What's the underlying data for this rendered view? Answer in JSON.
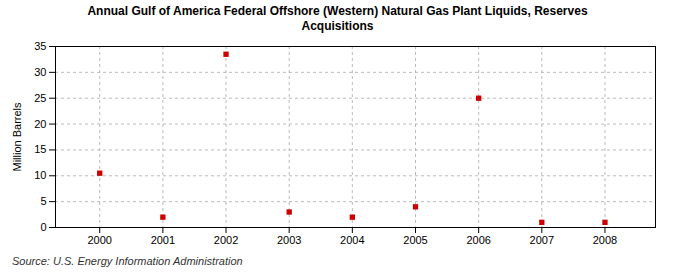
{
  "chart_data": {
    "type": "scatter",
    "title": "Annual Gulf of America Federal Offshore (Western) Natural Gas Plant Liquids, Reserves\nAcquisitions",
    "ylabel": "Million Barrels",
    "caption": "Source: U.S. Energy Information Administration",
    "x": [
      2000,
      2001,
      2002,
      2003,
      2004,
      2005,
      2006,
      2007,
      2008
    ],
    "values": [
      10.5,
      2,
      33.5,
      3,
      2,
      4,
      25,
      1,
      1
    ],
    "color": "#cc0000",
    "marker": "square",
    "xlim": [
      1999.3,
      2008.8
    ],
    "xticks": [
      2000,
      2001,
      2002,
      2003,
      2004,
      2005,
      2006,
      2007,
      2008
    ],
    "ylim": [
      0,
      35
    ],
    "yticks": [
      0,
      5,
      10,
      15,
      20,
      25,
      30,
      35
    ],
    "grid": true
  }
}
